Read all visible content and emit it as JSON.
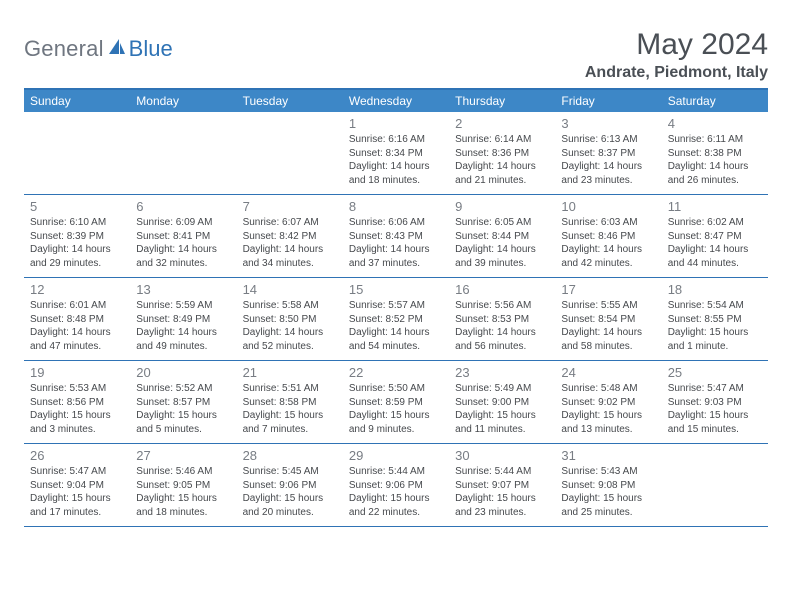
{
  "logo": {
    "general": "General",
    "blue": "Blue"
  },
  "title": "May 2024",
  "location": "Andrate, Piedmont, Italy",
  "colors": {
    "header_bg": "#3d87c7",
    "border": "#2f73b5",
    "logo_gray": "#6f7680",
    "logo_blue": "#2f73b5",
    "text_dark": "#4a4f55",
    "daynum": "#787d84",
    "info_text": "#46494d",
    "page_bg": "#ffffff"
  },
  "day_names": [
    "Sunday",
    "Monday",
    "Tuesday",
    "Wednesday",
    "Thursday",
    "Friday",
    "Saturday"
  ],
  "weeks": [
    [
      {
        "n": "",
        "sr": "",
        "ss": "",
        "dl": ""
      },
      {
        "n": "",
        "sr": "",
        "ss": "",
        "dl": ""
      },
      {
        "n": "",
        "sr": "",
        "ss": "",
        "dl": ""
      },
      {
        "n": "1",
        "sr": "Sunrise: 6:16 AM",
        "ss": "Sunset: 8:34 PM",
        "dl": "Daylight: 14 hours and 18 minutes."
      },
      {
        "n": "2",
        "sr": "Sunrise: 6:14 AM",
        "ss": "Sunset: 8:36 PM",
        "dl": "Daylight: 14 hours and 21 minutes."
      },
      {
        "n": "3",
        "sr": "Sunrise: 6:13 AM",
        "ss": "Sunset: 8:37 PM",
        "dl": "Daylight: 14 hours and 23 minutes."
      },
      {
        "n": "4",
        "sr": "Sunrise: 6:11 AM",
        "ss": "Sunset: 8:38 PM",
        "dl": "Daylight: 14 hours and 26 minutes."
      }
    ],
    [
      {
        "n": "5",
        "sr": "Sunrise: 6:10 AM",
        "ss": "Sunset: 8:39 PM",
        "dl": "Daylight: 14 hours and 29 minutes."
      },
      {
        "n": "6",
        "sr": "Sunrise: 6:09 AM",
        "ss": "Sunset: 8:41 PM",
        "dl": "Daylight: 14 hours and 32 minutes."
      },
      {
        "n": "7",
        "sr": "Sunrise: 6:07 AM",
        "ss": "Sunset: 8:42 PM",
        "dl": "Daylight: 14 hours and 34 minutes."
      },
      {
        "n": "8",
        "sr": "Sunrise: 6:06 AM",
        "ss": "Sunset: 8:43 PM",
        "dl": "Daylight: 14 hours and 37 minutes."
      },
      {
        "n": "9",
        "sr": "Sunrise: 6:05 AM",
        "ss": "Sunset: 8:44 PM",
        "dl": "Daylight: 14 hours and 39 minutes."
      },
      {
        "n": "10",
        "sr": "Sunrise: 6:03 AM",
        "ss": "Sunset: 8:46 PM",
        "dl": "Daylight: 14 hours and 42 minutes."
      },
      {
        "n": "11",
        "sr": "Sunrise: 6:02 AM",
        "ss": "Sunset: 8:47 PM",
        "dl": "Daylight: 14 hours and 44 minutes."
      }
    ],
    [
      {
        "n": "12",
        "sr": "Sunrise: 6:01 AM",
        "ss": "Sunset: 8:48 PM",
        "dl": "Daylight: 14 hours and 47 minutes."
      },
      {
        "n": "13",
        "sr": "Sunrise: 5:59 AM",
        "ss": "Sunset: 8:49 PM",
        "dl": "Daylight: 14 hours and 49 minutes."
      },
      {
        "n": "14",
        "sr": "Sunrise: 5:58 AM",
        "ss": "Sunset: 8:50 PM",
        "dl": "Daylight: 14 hours and 52 minutes."
      },
      {
        "n": "15",
        "sr": "Sunrise: 5:57 AM",
        "ss": "Sunset: 8:52 PM",
        "dl": "Daylight: 14 hours and 54 minutes."
      },
      {
        "n": "16",
        "sr": "Sunrise: 5:56 AM",
        "ss": "Sunset: 8:53 PM",
        "dl": "Daylight: 14 hours and 56 minutes."
      },
      {
        "n": "17",
        "sr": "Sunrise: 5:55 AM",
        "ss": "Sunset: 8:54 PM",
        "dl": "Daylight: 14 hours and 58 minutes."
      },
      {
        "n": "18",
        "sr": "Sunrise: 5:54 AM",
        "ss": "Sunset: 8:55 PM",
        "dl": "Daylight: 15 hours and 1 minute."
      }
    ],
    [
      {
        "n": "19",
        "sr": "Sunrise: 5:53 AM",
        "ss": "Sunset: 8:56 PM",
        "dl": "Daylight: 15 hours and 3 minutes."
      },
      {
        "n": "20",
        "sr": "Sunrise: 5:52 AM",
        "ss": "Sunset: 8:57 PM",
        "dl": "Daylight: 15 hours and 5 minutes."
      },
      {
        "n": "21",
        "sr": "Sunrise: 5:51 AM",
        "ss": "Sunset: 8:58 PM",
        "dl": "Daylight: 15 hours and 7 minutes."
      },
      {
        "n": "22",
        "sr": "Sunrise: 5:50 AM",
        "ss": "Sunset: 8:59 PM",
        "dl": "Daylight: 15 hours and 9 minutes."
      },
      {
        "n": "23",
        "sr": "Sunrise: 5:49 AM",
        "ss": "Sunset: 9:00 PM",
        "dl": "Daylight: 15 hours and 11 minutes."
      },
      {
        "n": "24",
        "sr": "Sunrise: 5:48 AM",
        "ss": "Sunset: 9:02 PM",
        "dl": "Daylight: 15 hours and 13 minutes."
      },
      {
        "n": "25",
        "sr": "Sunrise: 5:47 AM",
        "ss": "Sunset: 9:03 PM",
        "dl": "Daylight: 15 hours and 15 minutes."
      }
    ],
    [
      {
        "n": "26",
        "sr": "Sunrise: 5:47 AM",
        "ss": "Sunset: 9:04 PM",
        "dl": "Daylight: 15 hours and 17 minutes."
      },
      {
        "n": "27",
        "sr": "Sunrise: 5:46 AM",
        "ss": "Sunset: 9:05 PM",
        "dl": "Daylight: 15 hours and 18 minutes."
      },
      {
        "n": "28",
        "sr": "Sunrise: 5:45 AM",
        "ss": "Sunset: 9:06 PM",
        "dl": "Daylight: 15 hours and 20 minutes."
      },
      {
        "n": "29",
        "sr": "Sunrise: 5:44 AM",
        "ss": "Sunset: 9:06 PM",
        "dl": "Daylight: 15 hours and 22 minutes."
      },
      {
        "n": "30",
        "sr": "Sunrise: 5:44 AM",
        "ss": "Sunset: 9:07 PM",
        "dl": "Daylight: 15 hours and 23 minutes."
      },
      {
        "n": "31",
        "sr": "Sunrise: 5:43 AM",
        "ss": "Sunset: 9:08 PM",
        "dl": "Daylight: 15 hours and 25 minutes."
      },
      {
        "n": "",
        "sr": "",
        "ss": "",
        "dl": ""
      }
    ]
  ]
}
